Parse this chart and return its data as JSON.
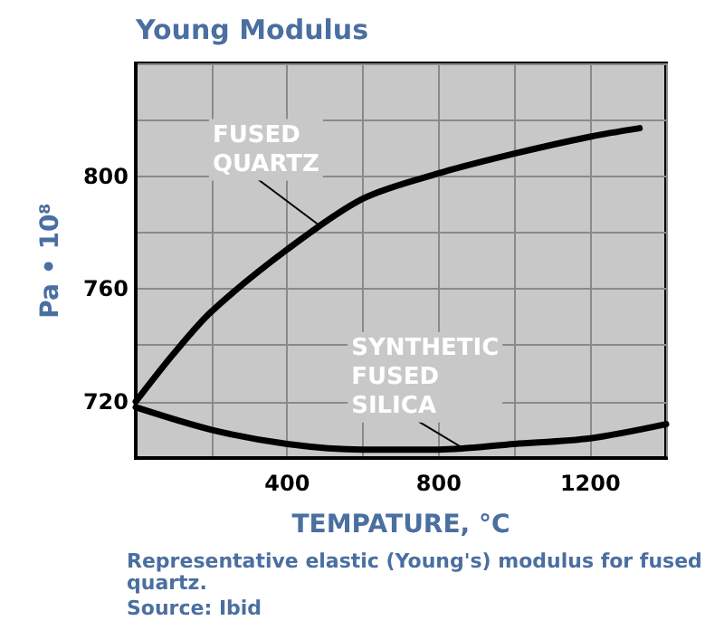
{
  "chart_data": {
    "type": "line",
    "title": "Young Modulus",
    "xlabel": "TEMPATURE, °C",
    "ylabel": "Pa • 10⁸",
    "x": [
      0,
      100,
      200,
      400,
      600,
      800,
      1000,
      1200,
      1330
    ],
    "series": [
      {
        "color": "#000000",
        "values": [
          720,
          737,
          752,
          774,
          792,
          801,
          808,
          814,
          817
        ]
      },
      {
        "color": "#000000",
        "x": [
          0,
          200,
          400,
          600,
          800,
          1000,
          1200,
          1400
        ],
        "values": [
          718,
          710,
          705,
          703,
          703,
          705,
          707,
          712
        ]
      }
    ],
    "xlim": [
      0,
      1400
    ],
    "ylim": [
      700,
      840
    ],
    "xticks": [
      {
        "value": 0,
        "label": null
      },
      {
        "value": 200,
        "label": null
      },
      400,
      {
        "value": 600,
        "label": null
      },
      800,
      {
        "value": 1000,
        "label": null
      },
      1200,
      {
        "value": 1400,
        "label": null
      }
    ],
    "yticks": [
      {
        "value": 700,
        "label": null
      },
      720,
      {
        "value": 740,
        "label": null
      },
      760,
      {
        "value": 780,
        "label": null
      },
      800,
      {
        "value": 820,
        "label": null
      },
      {
        "value": 840,
        "label": null
      }
    ],
    "grid": true,
    "marker": "none",
    "line_style": "solid",
    "annotations": [
      {
        "text": "FUSED\nQUARTZ",
        "x": 480,
        "y": 783
      },
      {
        "text": "SYNTHETIC\nFUSED\nSILICA",
        "x": 870,
        "y": 703
      },
      "Representative elastic (Young's) modulus for fused quartz.",
      "Source: Ibid"
    ]
  }
}
